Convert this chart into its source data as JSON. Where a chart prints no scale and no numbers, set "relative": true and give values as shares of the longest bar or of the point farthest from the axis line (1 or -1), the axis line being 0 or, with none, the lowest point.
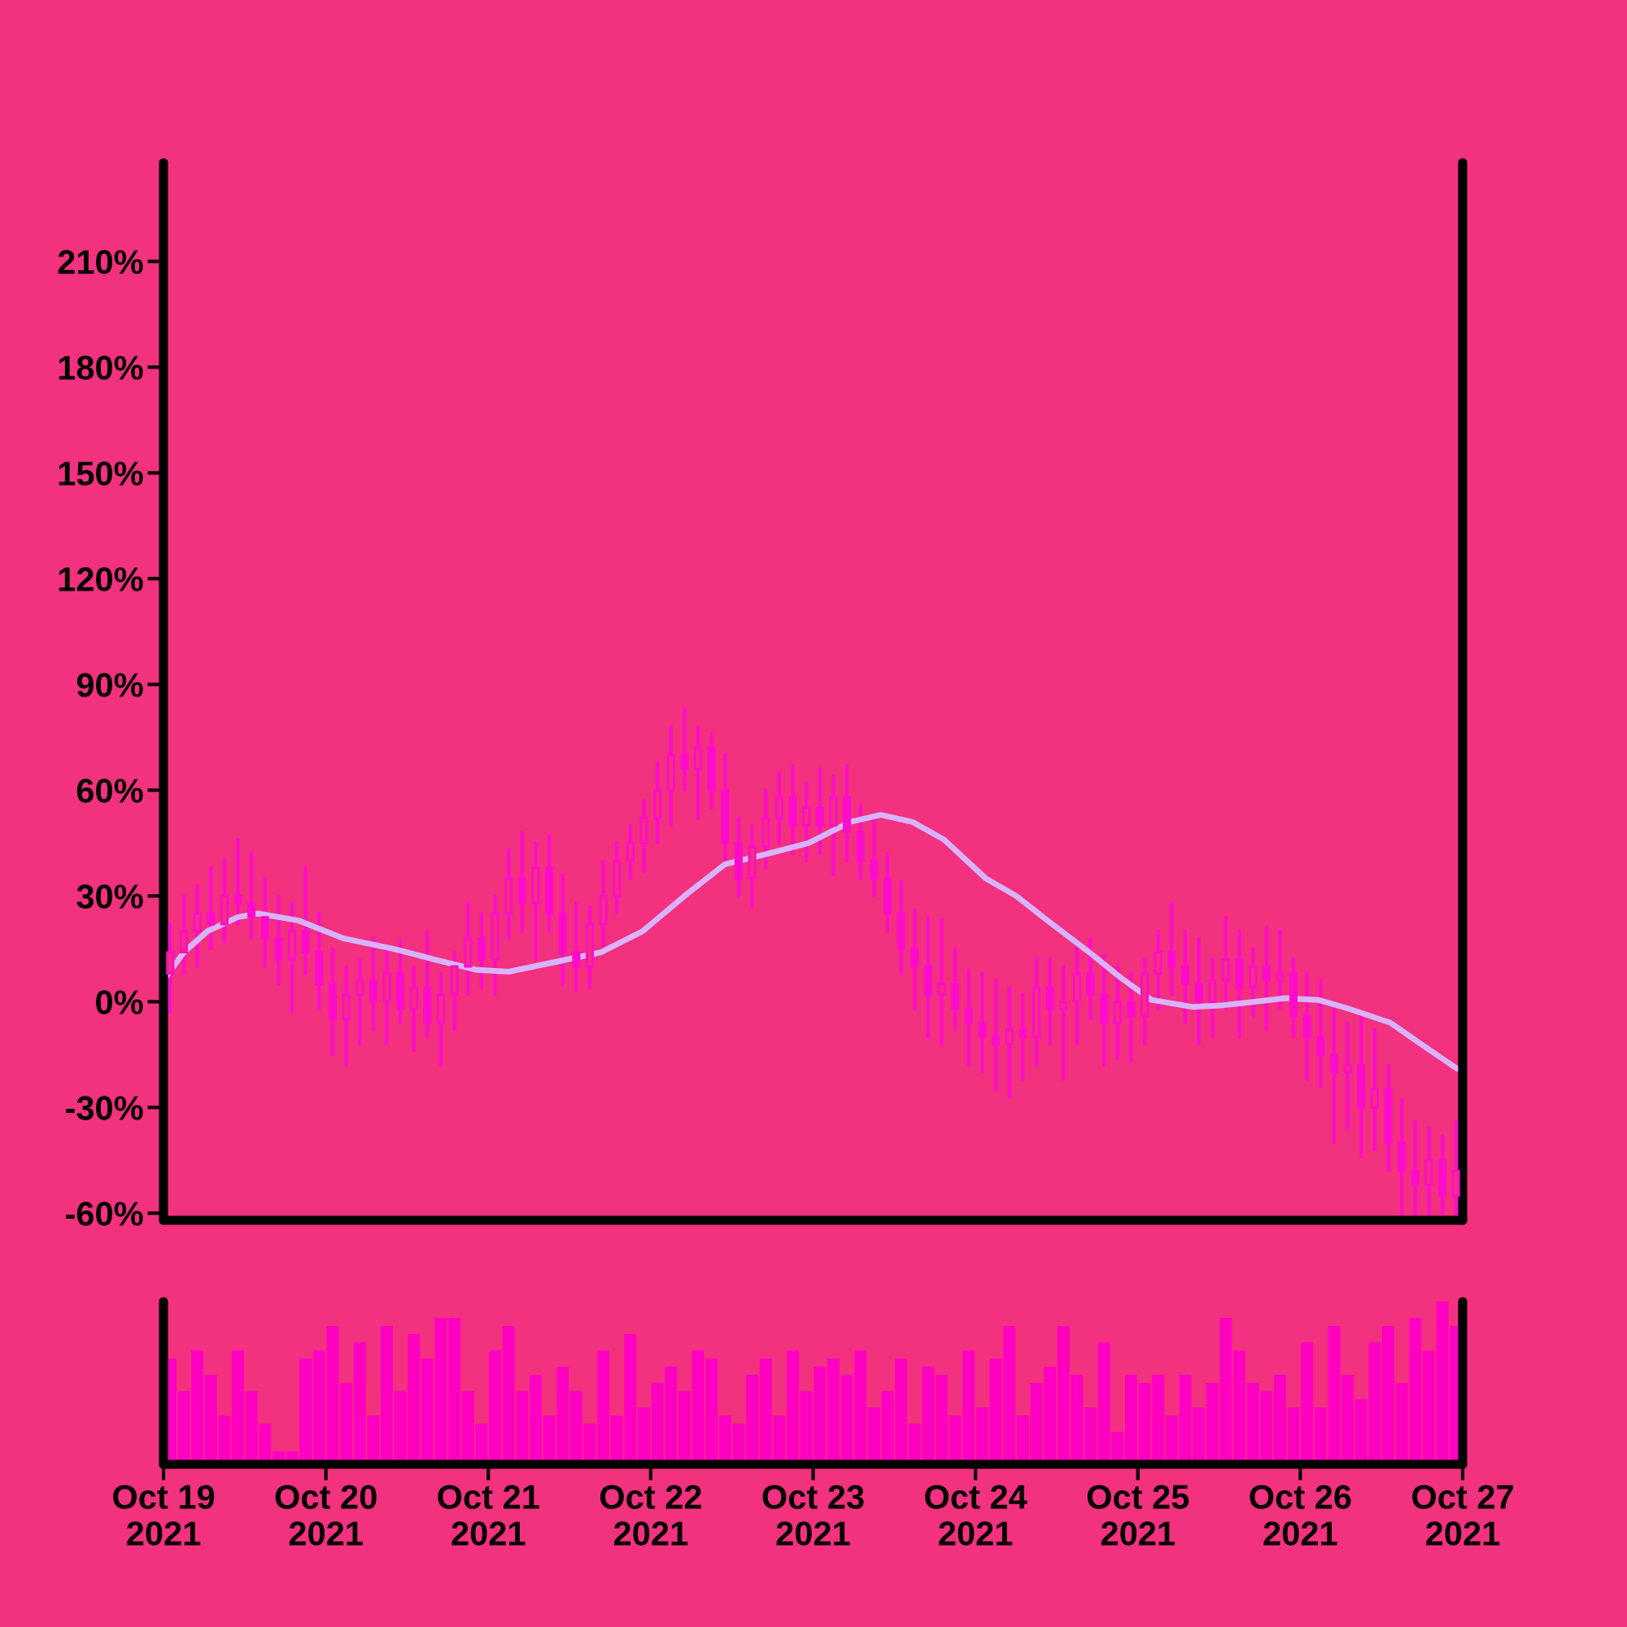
{
  "chart_data": [
    {
      "type": "candlestick",
      "color": "#ff0ccb",
      "x": [
        "2021-10-19T01:00",
        "2021-10-19T03:00",
        "2021-10-19T05:00",
        "2021-10-19T07:00",
        "2021-10-19T09:00",
        "2021-10-19T11:00",
        "2021-10-19T13:00",
        "2021-10-19T15:00",
        "2021-10-19T17:00",
        "2021-10-19T19:00",
        "2021-10-19T21:00",
        "2021-10-19T23:00",
        "2021-10-20T01:00",
        "2021-10-20T03:00",
        "2021-10-20T05:00",
        "2021-10-20T07:00",
        "2021-10-20T09:00",
        "2021-10-20T11:00",
        "2021-10-20T13:00",
        "2021-10-20T15:00",
        "2021-10-20T17:00",
        "2021-10-20T19:00",
        "2021-10-20T21:00",
        "2021-10-20T23:00",
        "2021-10-21T01:00",
        "2021-10-21T03:00",
        "2021-10-21T05:00",
        "2021-10-21T07:00",
        "2021-10-21T09:00",
        "2021-10-21T11:00",
        "2021-10-21T13:00",
        "2021-10-21T15:00",
        "2021-10-21T17:00",
        "2021-10-21T19:00",
        "2021-10-21T21:00",
        "2021-10-21T23:00",
        "2021-10-22T01:00",
        "2021-10-22T03:00",
        "2021-10-22T05:00",
        "2021-10-22T07:00",
        "2021-10-22T09:00",
        "2021-10-22T11:00",
        "2021-10-22T13:00",
        "2021-10-22T15:00",
        "2021-10-22T17:00",
        "2021-10-22T19:00",
        "2021-10-22T21:00",
        "2021-10-22T23:00",
        "2021-10-23T01:00",
        "2021-10-23T03:00",
        "2021-10-23T05:00",
        "2021-10-23T07:00",
        "2021-10-23T09:00",
        "2021-10-23T11:00",
        "2021-10-23T13:00",
        "2021-10-23T15:00",
        "2021-10-23T17:00",
        "2021-10-23T19:00",
        "2021-10-23T21:00",
        "2021-10-23T23:00",
        "2021-10-24T01:00",
        "2021-10-24T03:00",
        "2021-10-24T05:00",
        "2021-10-24T07:00",
        "2021-10-24T09:00",
        "2021-10-24T11:00",
        "2021-10-24T13:00",
        "2021-10-24T15:00",
        "2021-10-24T17:00",
        "2021-10-24T19:00",
        "2021-10-24T21:00",
        "2021-10-24T23:00",
        "2021-10-25T01:00",
        "2021-10-25T03:00",
        "2021-10-25T05:00",
        "2021-10-25T07:00",
        "2021-10-25T09:00",
        "2021-10-25T11:00",
        "2021-10-25T13:00",
        "2021-10-25T15:00",
        "2021-10-25T17:00",
        "2021-10-25T19:00",
        "2021-10-25T21:00",
        "2021-10-25T23:00",
        "2021-10-26T01:00",
        "2021-10-26T03:00",
        "2021-10-26T05:00",
        "2021-10-26T07:00",
        "2021-10-26T09:00",
        "2021-10-26T11:00",
        "2021-10-26T13:00",
        "2021-10-26T15:00",
        "2021-10-26T17:00",
        "2021-10-26T19:00",
        "2021-10-26T21:00",
        "2021-10-26T23:00"
      ],
      "ohlc": [
        [
          8,
          22,
          -3,
          14
        ],
        [
          14,
          30,
          8,
          20
        ],
        [
          20,
          33,
          10,
          25
        ],
        [
          25,
          38,
          15,
          22
        ],
        [
          22,
          40,
          17,
          30
        ],
        [
          30,
          46,
          22,
          28
        ],
        [
          28,
          42,
          18,
          24
        ],
        [
          24,
          35,
          10,
          18
        ],
        [
          18,
          30,
          5,
          12
        ],
        [
          12,
          28,
          -3,
          20
        ],
        [
          20,
          38,
          8,
          14
        ],
        [
          14,
          25,
          -2,
          5
        ],
        [
          5,
          15,
          -15,
          -5
        ],
        [
          -5,
          10,
          -18,
          2
        ],
        [
          2,
          12,
          -12,
          6
        ],
        [
          6,
          18,
          -8,
          0
        ],
        [
          0,
          15,
          -12,
          8
        ],
        [
          8,
          17,
          -6,
          -2
        ],
        [
          -2,
          10,
          -14,
          4
        ],
        [
          4,
          20,
          -10,
          -6
        ],
        [
          -6,
          8,
          -18,
          2
        ],
        [
          2,
          14,
          -8,
          10
        ],
        [
          10,
          28,
          2,
          18
        ],
        [
          18,
          25,
          4,
          12
        ],
        [
          12,
          30,
          2,
          25
        ],
        [
          25,
          43,
          18,
          35
        ],
        [
          35,
          48,
          20,
          28
        ],
        [
          28,
          45,
          12,
          38
        ],
        [
          38,
          47,
          20,
          25
        ],
        [
          25,
          36,
          5,
          14
        ],
        [
          14,
          28,
          3,
          10
        ],
        [
          10,
          27,
          4,
          22
        ],
        [
          22,
          40,
          16,
          30
        ],
        [
          30,
          45,
          25,
          40
        ],
        [
          40,
          50,
          35,
          45
        ],
        [
          45,
          57,
          37,
          52
        ],
        [
          52,
          68,
          45,
          60
        ],
        [
          60,
          78,
          50,
          70
        ],
        [
          70,
          83,
          60,
          66
        ],
        [
          66,
          78,
          52,
          72
        ],
        [
          72,
          76,
          55,
          60
        ],
        [
          60,
          70,
          40,
          45
        ],
        [
          45,
          52,
          30,
          35
        ],
        [
          35,
          50,
          27,
          44
        ],
        [
          44,
          60,
          38,
          52
        ],
        [
          52,
          65,
          45,
          58
        ],
        [
          58,
          67,
          42,
          50
        ],
        [
          50,
          62,
          40,
          55
        ],
        [
          55,
          66,
          42,
          50
        ],
        [
          50,
          64,
          36,
          58
        ],
        [
          58,
          67,
          40,
          48
        ],
        [
          48,
          56,
          35,
          40
        ],
        [
          40,
          52,
          30,
          35
        ],
        [
          35,
          42,
          20,
          25
        ],
        [
          25,
          34,
          8,
          15
        ],
        [
          15,
          26,
          -2,
          10
        ],
        [
          10,
          24,
          -10,
          2
        ],
        [
          2,
          23,
          -12,
          5
        ],
        [
          5,
          15,
          -8,
          -2
        ],
        [
          -2,
          9,
          -18,
          -6
        ],
        [
          -6,
          8,
          -20,
          -10
        ],
        [
          -10,
          6,
          -25,
          -12
        ],
        [
          -12,
          4,
          -27,
          -8
        ],
        [
          -8,
          2,
          -22,
          -10
        ],
        [
          -10,
          12,
          -18,
          4
        ],
        [
          4,
          12,
          -12,
          -2
        ],
        [
          -2,
          10,
          -22,
          0
        ],
        [
          0,
          16,
          -12,
          8
        ],
        [
          8,
          18,
          -5,
          2
        ],
        [
          2,
          13,
          -18,
          -6
        ],
        [
          -6,
          10,
          -16,
          0
        ],
        [
          0,
          8,
          -17,
          -4
        ],
        [
          -4,
          12,
          -12,
          8
        ],
        [
          8,
          20,
          -2,
          14
        ],
        [
          14,
          28,
          2,
          10
        ],
        [
          10,
          20,
          -6,
          5
        ],
        [
          5,
          18,
          -12,
          0
        ],
        [
          0,
          12,
          -10,
          6
        ],
        [
          6,
          24,
          -2,
          12
        ],
        [
          12,
          20,
          -10,
          4
        ],
        [
          4,
          15,
          -4,
          10
        ],
        [
          10,
          21,
          -8,
          6
        ],
        [
          6,
          20,
          -2,
          8
        ],
        [
          8,
          12,
          -10,
          -4
        ],
        [
          -4,
          8,
          -22,
          -10
        ],
        [
          -10,
          6,
          -24,
          -15
        ],
        [
          -15,
          -2,
          -40,
          -20
        ],
        [
          -20,
          -6,
          -36,
          -18
        ],
        [
          -18,
          -4,
          -44,
          -30
        ],
        [
          -30,
          -8,
          -42,
          -25
        ],
        [
          -25,
          -18,
          -48,
          -40
        ],
        [
          -40,
          -28,
          -61,
          -48
        ],
        [
          -48,
          -34,
          -61,
          -52
        ],
        [
          -52,
          -36,
          -61,
          -45
        ],
        [
          -45,
          -38,
          -60,
          -55
        ],
        [
          -55,
          -34,
          -61,
          -48
        ]
      ],
      "series": [
        {
          "type": "line",
          "color": "#d8b4fe",
          "x": [
            "2021-10-19T00:20",
            "2021-10-19T03:00",
            "2021-10-19T06:30",
            "2021-10-19T11:00",
            "2021-10-19T14:00",
            "2021-10-19T20:00",
            "2021-10-20T02:30",
            "2021-10-20T10:00",
            "2021-10-20T16:00",
            "2021-10-20T22:20",
            "2021-10-21T03:00",
            "2021-10-21T10:30",
            "2021-10-21T16:40",
            "2021-10-21T22:50",
            "2021-10-22T05:00",
            "2021-10-22T11:00",
            "2021-10-22T17:20",
            "2021-10-22T23:20",
            "2021-10-23T05:30",
            "2021-10-23T10:00",
            "2021-10-23T14:40",
            "2021-10-23T19:20",
            "2021-10-24T01:30",
            "2021-10-24T06:00",
            "2021-10-24T10:40",
            "2021-10-24T16:50",
            "2021-10-24T21:20",
            "2021-10-25T02:00",
            "2021-10-25T08:10",
            "2021-10-25T12:40",
            "2021-10-25T21:50",
            "2021-10-26T02:40",
            "2021-10-26T07:10",
            "2021-10-26T13:20",
            "2021-10-26T17:50",
            "2021-10-26T23:10"
          ],
          "values": [
            7,
            14,
            20,
            24,
            25,
            23,
            18,
            15,
            12,
            9,
            8.5,
            11.5,
            14,
            20,
            30,
            39,
            42,
            45,
            51,
            53,
            51,
            46,
            35,
            30,
            23,
            14,
            7,
            0.5,
            -1.5,
            -1,
            1,
            0.5,
            -2,
            -6,
            -12,
            -19
          ]
        }
      ],
      "xlim": [
        "2021-10-19",
        "2021-10-27"
      ],
      "ylim": [
        -62,
        238
      ],
      "yticks": [
        {
          "value": -60,
          "label": "-60%"
        },
        {
          "value": -30,
          "label": "-30%"
        },
        {
          "value": 0,
          "label": "0%"
        },
        {
          "value": 30,
          "label": "30%"
        },
        {
          "value": 60,
          "label": "60%"
        },
        {
          "value": 90,
          "label": "90%"
        },
        {
          "value": 120,
          "label": "120%"
        },
        {
          "value": 150,
          "label": "150%"
        },
        {
          "value": 180,
          "label": "180%"
        },
        {
          "value": 210,
          "label": "210%"
        }
      ],
      "tick_labels": "y",
      "grid": false,
      "legend": false
    },
    {
      "type": "bar",
      "relative": true,
      "color": "#ff00c3",
      "tick_labels": "x",
      "xlim": [
        "2021-10-19",
        "2021-10-27"
      ],
      "xticks": [
        {
          "value": "2021-10-19",
          "label": "Oct 19\n2021"
        },
        {
          "value": "2021-10-20",
          "label": "Oct 20\n2021"
        },
        {
          "value": "2021-10-21",
          "label": "Oct 21\n2021"
        },
        {
          "value": "2021-10-22",
          "label": "Oct 22\n2021"
        },
        {
          "value": "2021-10-23",
          "label": "Oct 23\n2021"
        },
        {
          "value": "2021-10-24",
          "label": "Oct 24\n2021"
        },
        {
          "value": "2021-10-25",
          "label": "Oct 25\n2021"
        },
        {
          "value": "2021-10-26",
          "label": "Oct 26\n2021"
        },
        {
          "value": "2021-10-27",
          "label": "Oct 27\n2021"
        }
      ],
      "x": [
        "2021-10-19T01:00",
        "2021-10-19T03:00",
        "2021-10-19T05:00",
        "2021-10-19T07:00",
        "2021-10-19T09:00",
        "2021-10-19T11:00",
        "2021-10-19T13:00",
        "2021-10-19T15:00",
        "2021-10-19T17:00",
        "2021-10-19T19:00",
        "2021-10-19T21:00",
        "2021-10-19T23:00",
        "2021-10-20T01:00",
        "2021-10-20T03:00",
        "2021-10-20T05:00",
        "2021-10-20T07:00",
        "2021-10-20T09:00",
        "2021-10-20T11:00",
        "2021-10-20T13:00",
        "2021-10-20T15:00",
        "2021-10-20T17:00",
        "2021-10-20T19:00",
        "2021-10-20T21:00",
        "2021-10-20T23:00",
        "2021-10-21T01:00",
        "2021-10-21T03:00",
        "2021-10-21T05:00",
        "2021-10-21T07:00",
        "2021-10-21T09:00",
        "2021-10-21T11:00",
        "2021-10-21T13:00",
        "2021-10-21T15:00",
        "2021-10-21T17:00",
        "2021-10-21T19:00",
        "2021-10-21T21:00",
        "2021-10-21T23:00",
        "2021-10-22T01:00",
        "2021-10-22T03:00",
        "2021-10-22T05:00",
        "2021-10-22T07:00",
        "2021-10-22T09:00",
        "2021-10-22T11:00",
        "2021-10-22T13:00",
        "2021-10-22T15:00",
        "2021-10-22T17:00",
        "2021-10-22T19:00",
        "2021-10-22T21:00",
        "2021-10-22T23:00",
        "2021-10-23T01:00",
        "2021-10-23T03:00",
        "2021-10-23T05:00",
        "2021-10-23T07:00",
        "2021-10-23T09:00",
        "2021-10-23T11:00",
        "2021-10-23T13:00",
        "2021-10-23T15:00",
        "2021-10-23T17:00",
        "2021-10-23T19:00",
        "2021-10-23T21:00",
        "2021-10-23T23:00",
        "2021-10-24T01:00",
        "2021-10-24T03:00",
        "2021-10-24T05:00",
        "2021-10-24T07:00",
        "2021-10-24T09:00",
        "2021-10-24T11:00",
        "2021-10-24T13:00",
        "2021-10-24T15:00",
        "2021-10-24T17:00",
        "2021-10-24T19:00",
        "2021-10-24T21:00",
        "2021-10-24T23:00",
        "2021-10-25T01:00",
        "2021-10-25T03:00",
        "2021-10-25T05:00",
        "2021-10-25T07:00",
        "2021-10-25T09:00",
        "2021-10-25T11:00",
        "2021-10-25T13:00",
        "2021-10-25T15:00",
        "2021-10-25T17:00",
        "2021-10-25T19:00",
        "2021-10-25T21:00",
        "2021-10-25T23:00",
        "2021-10-26T01:00",
        "2021-10-26T03:00",
        "2021-10-26T05:00",
        "2021-10-26T07:00",
        "2021-10-26T09:00",
        "2021-10-26T11:00",
        "2021-10-26T13:00",
        "2021-10-26T15:00",
        "2021-10-26T17:00",
        "2021-10-26T19:00",
        "2021-10-26T21:00",
        "2021-10-26T23:00"
      ],
      "values": [
        0.65,
        0.45,
        0.7,
        0.55,
        0.3,
        0.7,
        0.45,
        0.25,
        0.08,
        0.08,
        0.65,
        0.7,
        0.85,
        0.5,
        0.75,
        0.3,
        0.85,
        0.45,
        0.8,
        0.65,
        0.9,
        0.9,
        0.45,
        0.25,
        0.7,
        0.85,
        0.45,
        0.55,
        0.3,
        0.6,
        0.45,
        0.25,
        0.7,
        0.3,
        0.8,
        0.35,
        0.5,
        0.6,
        0.45,
        0.7,
        0.65,
        0.3,
        0.25,
        0.55,
        0.65,
        0.3,
        0.7,
        0.45,
        0.6,
        0.65,
        0.55,
        0.7,
        0.35,
        0.45,
        0.65,
        0.25,
        0.6,
        0.55,
        0.3,
        0.7,
        0.35,
        0.65,
        0.85,
        0.3,
        0.5,
        0.6,
        0.85,
        0.55,
        0.35,
        0.75,
        0.2,
        0.55,
        0.5,
        0.55,
        0.3,
        0.55,
        0.35,
        0.5,
        0.9,
        0.7,
        0.5,
        0.45,
        0.55,
        0.35,
        0.75,
        0.35,
        0.85,
        0.55,
        0.4,
        0.75,
        0.85,
        0.5,
        0.9,
        0.7,
        1,
        0.85
      ]
    }
  ]
}
